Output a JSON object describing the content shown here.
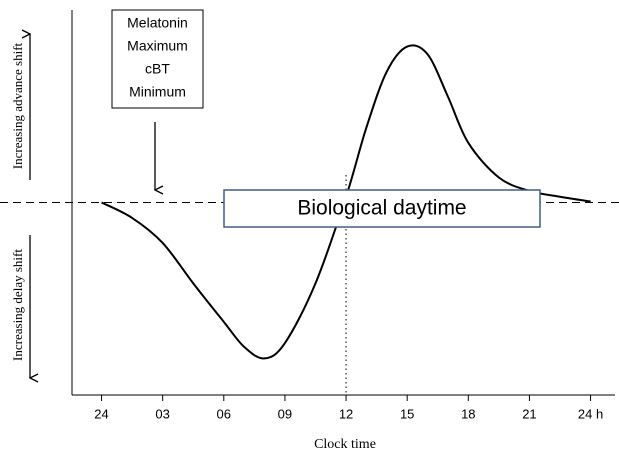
{
  "chart_data": {
    "type": "line",
    "x_label": "Clock time",
    "y_label_upper": "Increasing advance shift",
    "y_label_lower": "Increasing delay shift",
    "annotations": [
      {
        "lines": [
          "Melatonin",
          "Maximum",
          "cBT",
          "Minimum"
        ]
      },
      {
        "text": "Biological daytime"
      }
    ],
    "xlim": [
      -1.45,
      25.2
    ],
    "ylim": [
      -1,
      1
    ],
    "xticks": [
      {
        "value": 0,
        "label": "24"
      },
      {
        "value": 3,
        "label": "03"
      },
      {
        "value": 6,
        "label": "06"
      },
      {
        "value": 9,
        "label": "09"
      },
      {
        "value": 12,
        "label": "12"
      },
      {
        "value": 15,
        "label": "15"
      },
      {
        "value": 18,
        "label": "18"
      },
      {
        "value": 21,
        "label": "21"
      },
      {
        "value": 24,
        "label": "24 h"
      }
    ],
    "reference_x": 12,
    "reference_y": 0,
    "x": [
      0,
      1.5,
      3,
      4.5,
      6,
      7,
      8,
      9,
      10.5,
      12,
      13,
      14,
      15,
      16,
      17,
      18,
      19.5,
      21,
      22.5,
      24
    ],
    "series": [
      {
        "color": "#000000",
        "values": [
          0,
          -0.08,
          -0.21,
          -0.42,
          -0.62,
          -0.75,
          -0.81,
          -0.73,
          -0.42,
          0.03,
          0.39,
          0.68,
          0.81,
          0.77,
          0.55,
          0.31,
          0.13,
          0.06,
          0.03,
          0.005
        ]
      }
    ]
  }
}
